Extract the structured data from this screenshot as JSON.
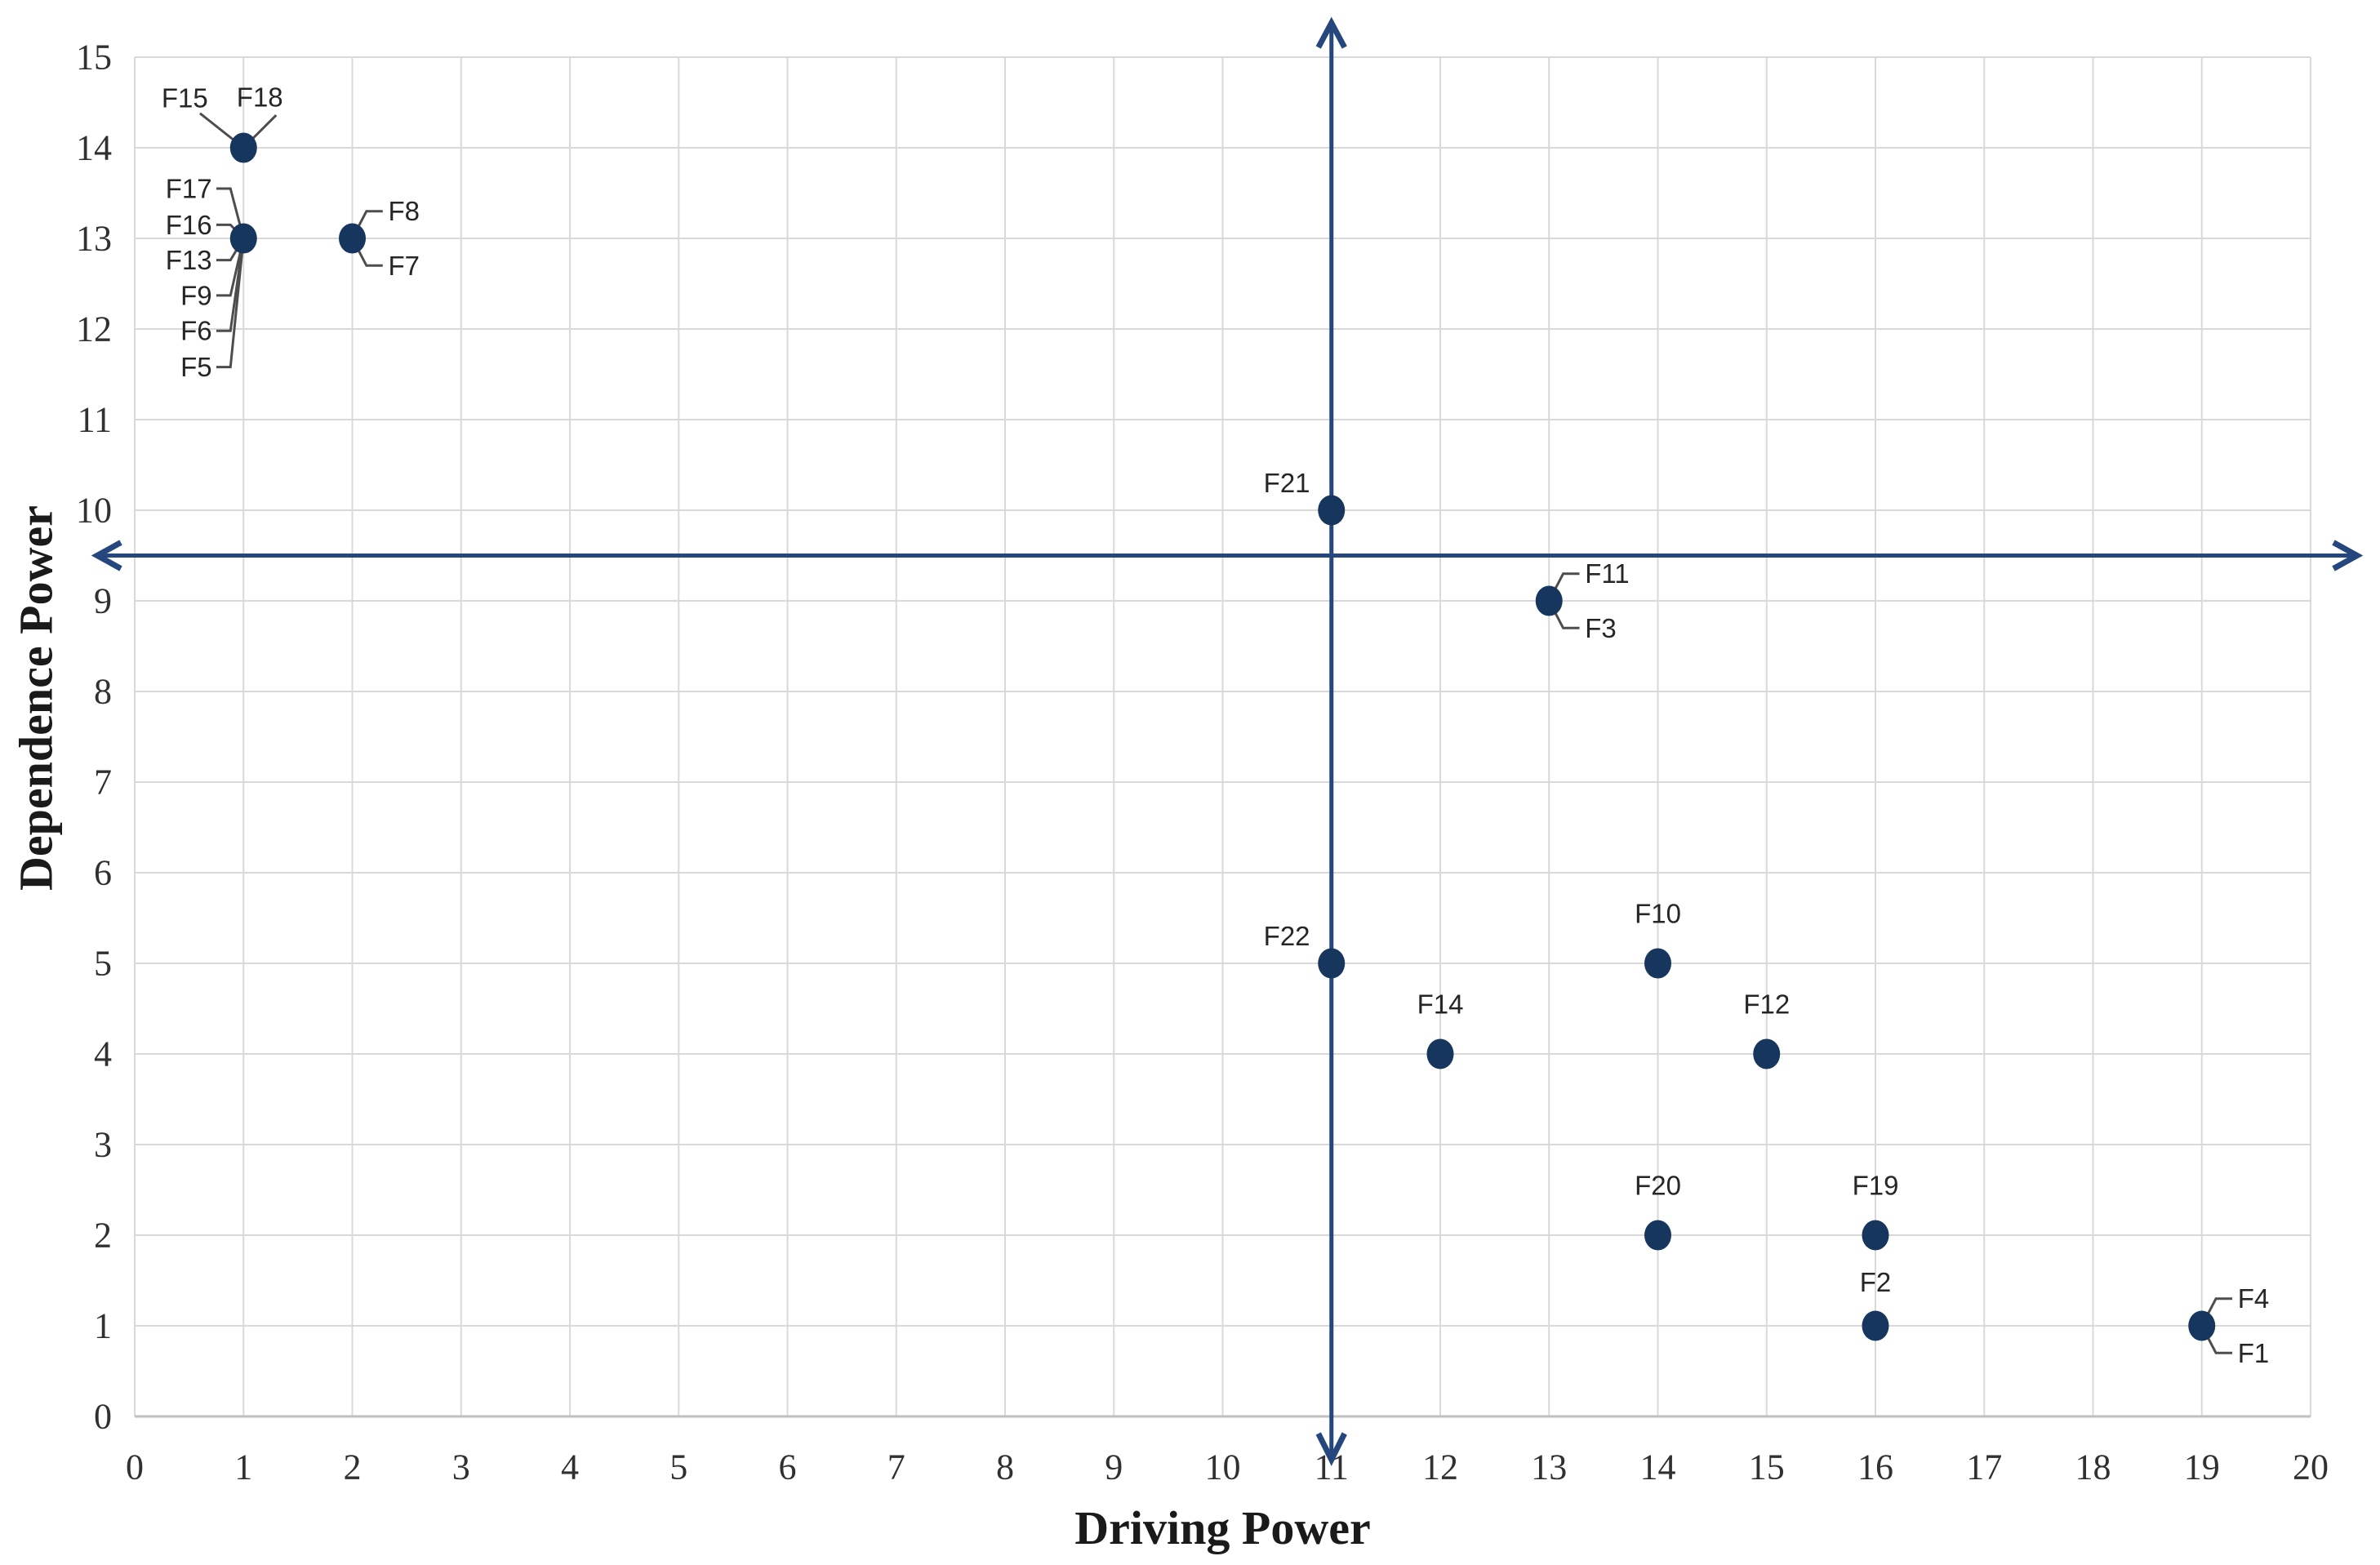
{
  "chart_data": {
    "type": "scatter",
    "title": "",
    "xlabel": "Driving Power",
    "ylabel": "Dependence Power",
    "x_axis": {
      "min": 0,
      "max": 20,
      "step": 1
    },
    "y_axis": {
      "min": 0,
      "max": 15,
      "step": 1
    },
    "grid": true,
    "legend": false,
    "axes_cross": {
      "x": 11,
      "y": 9.5
    },
    "points": [
      {
        "x": 1,
        "y": 14,
        "labels": [
          {
            "text": "F15",
            "placement": "callout-above-left"
          },
          {
            "text": "F18",
            "placement": "callout-above-right"
          }
        ]
      },
      {
        "x": 1,
        "y": 13,
        "labels": [
          {
            "text": "F17",
            "placement": "stack-left",
            "label_y": 13.55
          },
          {
            "text": "F16",
            "placement": "stack-left",
            "label_y": 13.15
          },
          {
            "text": "F13",
            "placement": "stack-left",
            "label_y": 12.76
          },
          {
            "text": "F9",
            "placement": "stack-left",
            "label_y": 12.37
          },
          {
            "text": "F6",
            "placement": "stack-left",
            "label_y": 11.98
          },
          {
            "text": "F5",
            "placement": "stack-left",
            "label_y": 11.58
          }
        ]
      },
      {
        "x": 2,
        "y": 13,
        "labels": [
          {
            "text": "F8",
            "placement": "callout-right-top"
          },
          {
            "text": "F7",
            "placement": "callout-right-bottom"
          }
        ]
      },
      {
        "x": 11,
        "y": 10,
        "labels": [
          {
            "text": "F21",
            "placement": "above-left"
          }
        ]
      },
      {
        "x": 13,
        "y": 9,
        "labels": [
          {
            "text": "F11",
            "placement": "callout-right-top"
          },
          {
            "text": "F3",
            "placement": "callout-right-bottom"
          }
        ]
      },
      {
        "x": 11,
        "y": 5,
        "labels": [
          {
            "text": "F22",
            "placement": "above-left"
          }
        ]
      },
      {
        "x": 14,
        "y": 5,
        "labels": [
          {
            "text": "F10",
            "placement": "above"
          }
        ]
      },
      {
        "x": 12,
        "y": 4,
        "labels": [
          {
            "text": "F14",
            "placement": "above"
          }
        ]
      },
      {
        "x": 15,
        "y": 4,
        "labels": [
          {
            "text": "F12",
            "placement": "above"
          }
        ]
      },
      {
        "x": 14,
        "y": 2,
        "labels": [
          {
            "text": "F20",
            "placement": "above"
          }
        ]
      },
      {
        "x": 16,
        "y": 2,
        "labels": [
          {
            "text": "F19",
            "placement": "above"
          }
        ]
      },
      {
        "x": 16,
        "y": 1,
        "labels": [
          {
            "text": "F2",
            "placement": "above",
            "dy": 0.48
          }
        ]
      },
      {
        "x": 19,
        "y": 1,
        "labels": [
          {
            "text": "F4",
            "placement": "callout-right-top"
          },
          {
            "text": "F1",
            "placement": "callout-right-bottom"
          }
        ]
      }
    ]
  },
  "colors": {
    "marker": "#17365D",
    "axis_arrow": "#26477E",
    "grid": "#D9D9D9",
    "axis_line": "#BFBFBF",
    "leader": "#4D4D4D",
    "tick_label": "#303030",
    "data_label": "#262626",
    "axis_title": "#1A1A1A",
    "background": "#FFFFFF"
  }
}
